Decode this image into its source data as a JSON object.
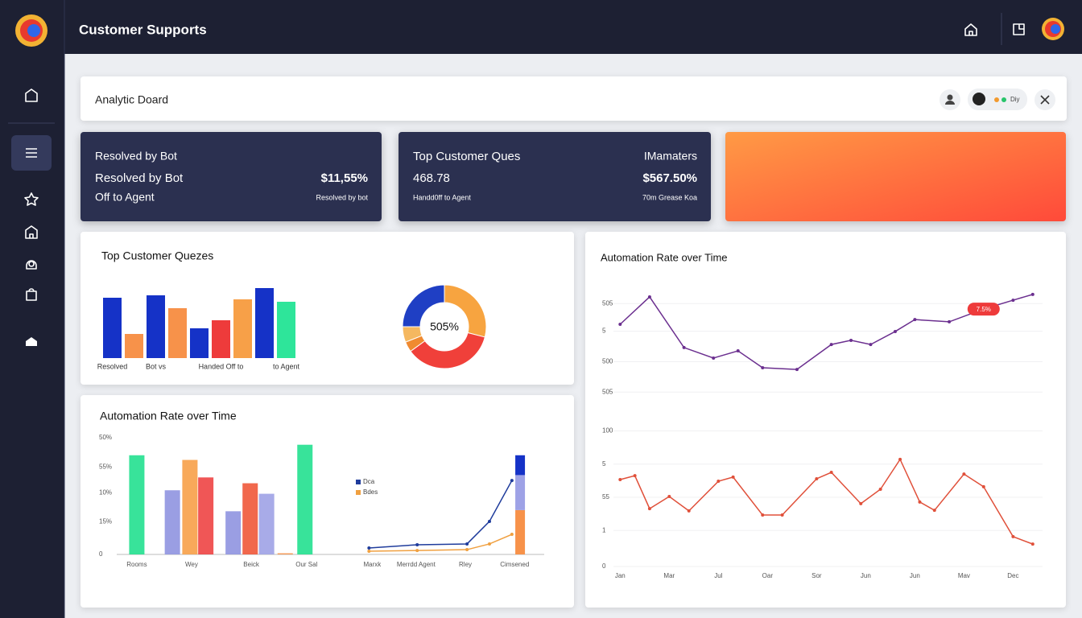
{
  "header": {
    "title": "Customer Supports"
  },
  "toolbar": {
    "title": "Analytic Doard",
    "status": "Diy"
  },
  "cards": [
    {
      "heading": "Resolved by Bot",
      "label": "Resolved by Bot",
      "sublabel": "Off to Agent",
      "value": "$11,55%",
      "note": "Resolved by bot"
    },
    {
      "heading": "Top Customer Ques",
      "heading_right": "IMamaters",
      "label": "468.78",
      "value": "$567.50%",
      "sublabel": "Handd0ff to Agent",
      "note": "70m Grease Koa"
    }
  ],
  "chart_data": [
    {
      "type": "bar",
      "title": "Top Customer Quezes",
      "categories": [
        "Resolved",
        null,
        "Bot vs",
        null,
        null,
        "Handed Off to",
        null,
        null,
        "to Agent"
      ],
      "values": [
        75,
        30,
        78,
        62,
        37,
        47,
        73,
        87,
        70
      ],
      "colors": [
        "#1532c7",
        "#f7924a",
        "#1532c7",
        "#f7924a",
        "#1532c7",
        "#ee3b3b",
        "#f7a048",
        "#1532c7",
        "#2ee59a"
      ]
    },
    {
      "type": "pie",
      "center_label": "505%",
      "values": [
        29,
        36,
        4,
        6,
        25
      ],
      "colors": [
        "#f7a440",
        "#f0403a",
        "#f08a30",
        "#f5b860",
        "#1f3fc4"
      ]
    },
    {
      "type": "line",
      "title": "Automation Rate over Time",
      "xlim": [
        -0.3,
        8.6
      ],
      "xticks": [
        {
          "value": 0,
          "label": "Jan"
        },
        {
          "value": 1,
          "label": "Mar"
        },
        {
          "value": 2,
          "label": "Jul"
        },
        {
          "value": 3,
          "label": "Oar"
        },
        {
          "value": 4,
          "label": "Sor"
        },
        {
          "value": 5,
          "label": "Jun"
        },
        {
          "value": 6,
          "label": "Jun"
        },
        {
          "value": 7,
          "label": "Mav"
        },
        {
          "value": 8,
          "label": "Dec"
        }
      ],
      "ylim": [
        0,
        100
      ],
      "yticks": [
        {
          "value": 95,
          "label": "505"
        },
        {
          "value": 85,
          "label": "5"
        },
        {
          "value": 74,
          "label": "500"
        },
        {
          "value": 63,
          "label": "505"
        },
        {
          "value": 49,
          "label": "100"
        },
        {
          "value": 37,
          "label": "5"
        },
        {
          "value": 25,
          "label": "55"
        },
        {
          "value": 13,
          "label": "1"
        },
        0
      ],
      "series": [
        {
          "color": "#6b2f8f",
          "x": [
            0,
            0.6,
            1.3,
            1.9,
            2.4,
            2.9,
            3.6,
            4.3,
            4.7,
            5.1,
            5.6,
            6.0,
            6.7,
            7.4,
            8.0,
            8.4
          ],
          "values": [
            87.5,
            97.4,
            79.1,
            75.3,
            77.9,
            71.8,
            71.2,
            80.2,
            81.7,
            80.2,
            84.9,
            89.2,
            88.4,
            93.0,
            96.2,
            98.3
          ]
        },
        {
          "color": "#e0503a",
          "x": [
            0,
            0.3,
            0.6,
            1.0,
            1.4,
            2.0,
            2.3,
            2.9,
            3.3,
            4.0,
            4.3,
            4.9,
            5.3,
            5.7,
            6.1,
            6.4,
            7.0,
            7.4,
            8.0,
            8.4
          ],
          "values": [
            31.4,
            32.8,
            20.9,
            25.3,
            20.1,
            30.8,
            32.3,
            18.6,
            18.6,
            31.7,
            34.0,
            22.7,
            27.9,
            38.7,
            23.3,
            20.3,
            33.4,
            28.8,
            10.8,
            8.1
          ]
        }
      ],
      "annotation": {
        "text": "7.5%",
        "x": 7.4,
        "y": 93
      }
    },
    {
      "type": "combo",
      "title": "Automation Rate over Time",
      "xlim": [
        -0.44,
        7.44
      ],
      "xticks": [
        {
          "value": 0,
          "label": "Rooms"
        },
        {
          "value": 1,
          "label": "Wey"
        },
        {
          "value": 2.09,
          "label": "Beick"
        },
        {
          "value": 3.1,
          "label": "Our Sal"
        },
        {
          "value": 4.3,
          "label": "Marxk"
        },
        {
          "value": 5.1,
          "label": "Merrdd Agent"
        },
        {
          "value": 6,
          "label": "Rley"
        },
        {
          "value": 6.9,
          "label": "Cimsened"
        }
      ],
      "ylim": [
        0,
        100
      ],
      "yticks": [
        {
          "value": 100,
          "label": "50%"
        },
        {
          "value": 75,
          "label": "55%"
        },
        {
          "value": 53,
          "label": "10%"
        },
        {
          "value": 28,
          "label": "15%"
        },
        0
      ],
      "bars": {
        "x": [
          0,
          0.65,
          0.97,
          1.26,
          1.76,
          2.07,
          2.37,
          2.71,
          3.07
        ],
        "values": [
          85,
          55,
          81,
          66,
          37,
          61,
          52,
          1,
          94
        ],
        "colors": [
          "#22e08f",
          "#8f93e0",
          "#f7a048",
          "#ee4444",
          "#8f93e0",
          "#f0583a",
          "#9ea2e6",
          "#f7924a",
          "#22e08f"
        ]
      },
      "stack": {
        "x": 7.0,
        "values": [
          38,
          30,
          17
        ],
        "colors": [
          "#f7924a",
          "#9ea2e6",
          "#1532c7"
        ]
      },
      "series": [
        {
          "name": "Dca",
          "color": "#1f3c9c",
          "x": [
            4.24,
            5.12,
            6.03,
            6.44,
            6.85
          ],
          "values": [
            5.5,
            8.3,
            9.0,
            28.3,
            63.4
          ]
        },
        {
          "name": "Bdes",
          "color": "#f0a040",
          "x": [
            4.24,
            5.12,
            6.03,
            6.44,
            6.85
          ],
          "values": [
            2.8,
            3.4,
            4.1,
            9.0,
            17.2
          ]
        }
      ]
    }
  ]
}
